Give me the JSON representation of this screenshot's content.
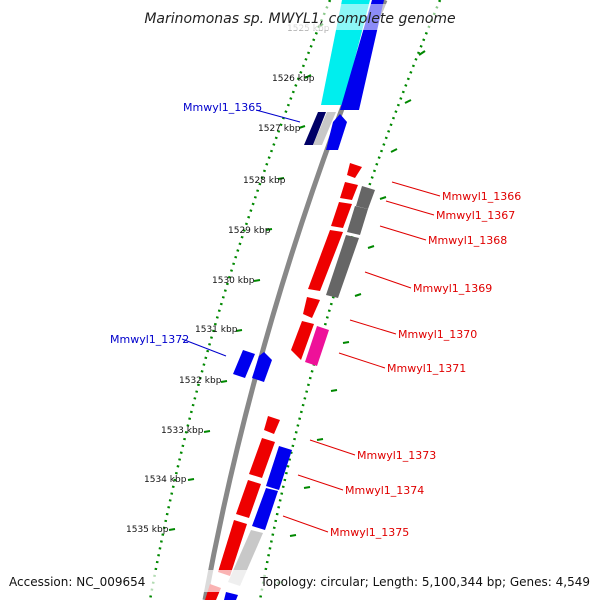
{
  "title": "Marinomonas sp. MWYL1, complete genome",
  "footer": {
    "accession": "Accession: NC_009654",
    "topology": "Topology: circular; Length: 5,100,344 bp; Genes: 4,549"
  },
  "ticks": [
    {
      "label": "1525 kbp"
    },
    {
      "label": "1526 kbp"
    },
    {
      "label": "1527 kbp"
    },
    {
      "label": "1528 kbp"
    },
    {
      "label": "1529 kbp"
    },
    {
      "label": "1530 kbp"
    },
    {
      "label": "1531 kbp"
    },
    {
      "label": "1532 kbp"
    },
    {
      "label": "1533 kbp"
    },
    {
      "label": "1534 kbp"
    },
    {
      "label": "1535 kbp"
    }
  ],
  "gene_labels": [
    {
      "id": "Mmwyl1_1365",
      "strand": "forward",
      "color": "#0000cc"
    },
    {
      "id": "Mmwyl1_1366",
      "strand": "reverse",
      "color": "#e00000"
    },
    {
      "id": "Mmwyl1_1367",
      "strand": "reverse",
      "color": "#e00000"
    },
    {
      "id": "Mmwyl1_1368",
      "strand": "reverse",
      "color": "#e00000"
    },
    {
      "id": "Mmwyl1_1369",
      "strand": "reverse",
      "color": "#e00000"
    },
    {
      "id": "Mmwyl1_1370",
      "strand": "reverse",
      "color": "#e00000"
    },
    {
      "id": "Mmwyl1_1371",
      "strand": "reverse",
      "color": "#e00000"
    },
    {
      "id": "Mmwyl1_1372",
      "strand": "forward",
      "color": "#0000cc"
    },
    {
      "id": "Mmwyl1_1373",
      "strand": "reverse",
      "color": "#e00000"
    },
    {
      "id": "Mmwyl1_1374",
      "strand": "reverse",
      "color": "#e00000"
    },
    {
      "id": "Mmwyl1_1375",
      "strand": "reverse",
      "color": "#e00000"
    }
  ],
  "colors": {
    "forward_cds": "#0000ee",
    "reverse_cds": "#ee0000",
    "cog_cyan": "#00eeee",
    "cog_gray": "#666666",
    "cog_light": "#c8c8c8",
    "cog_navy": "#000066",
    "cog_pink": "#ee1199",
    "backbone": "#888888",
    "ruler_green": "#008800"
  }
}
